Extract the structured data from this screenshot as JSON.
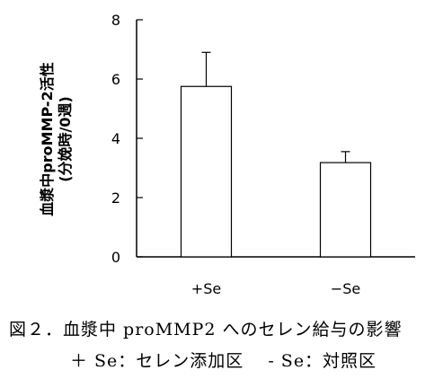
{
  "chart_data": {
    "type": "bar",
    "categories": [
      "+Se",
      "−Se"
    ],
    "values": [
      5.75,
      3.18
    ],
    "errors": [
      1.15,
      0.37
    ],
    "ylabel_line1": "血漿中proMMP-2活性",
    "ylabel_line2": "(分娩時/0週)",
    "ylim": [
      0,
      8
    ],
    "yticks": [
      0,
      2,
      4,
      6,
      8
    ],
    "grid": false
  },
  "caption": {
    "line1": "図２．血漿中 proMMP2 へのセレン給与の影響",
    "line2": "＋ Se：セレン添加区　 - Se：対照区"
  }
}
